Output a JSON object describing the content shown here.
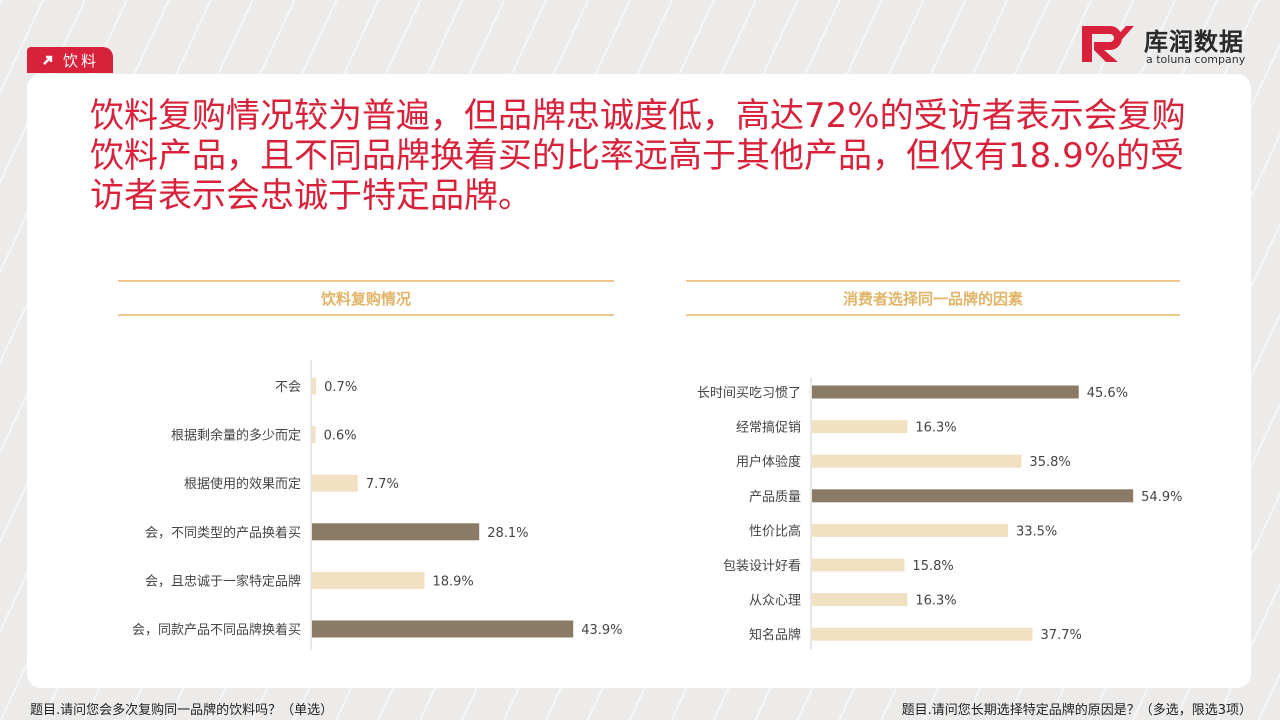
{
  "tag": {
    "label": "饮料"
  },
  "logo": {
    "brand": "库润数据",
    "sub": "a toluna company"
  },
  "headline": "饮料复购情况较为普遍，但品牌忠诚度低，高达72%的受访者表示会复购饮料产品，且不同品牌换着买的比率远高于其他产品，但仅有18.9%的受访者表示会忠诚于特定品牌。",
  "colors": {
    "accent": "#d8213a",
    "dark_bar": "#8b7a66",
    "light_bar": "#f2e0c2",
    "header_line": "#edc98d",
    "header_text": "#e2b467"
  },
  "chart_data": [
    {
      "type": "bar",
      "orientation": "horizontal",
      "title": "饮料复购情况",
      "categories": [
        "不会",
        "根据剩余量的多少而定",
        "根据使用的效果而定",
        "会，不同类型的产品换着买",
        "会，且忠诚于一家特定品牌",
        "会，同款产品不同品牌换着买"
      ],
      "values": [
        0.7,
        0.6,
        7.7,
        28.1,
        18.9,
        43.9
      ],
      "value_labels": [
        "0.7%",
        "0.6%",
        "7.7%",
        "28.1%",
        "18.9%",
        "43.9%"
      ],
      "highlight": [
        false,
        false,
        false,
        true,
        false,
        true
      ],
      "unit": "%"
    },
    {
      "type": "bar",
      "orientation": "horizontal",
      "title": "消费者选择同一品牌的因素",
      "categories": [
        "长时间买吃习惯了",
        "经常搞促销",
        "用户体验度",
        "产品质量",
        "性价比高",
        "包装设计好看",
        "从众心理",
        "知名品牌"
      ],
      "values": [
        45.6,
        16.3,
        35.8,
        54.9,
        33.5,
        15.8,
        16.3,
        37.7
      ],
      "value_labels": [
        "45.6%",
        "16.3%",
        "35.8%",
        "54.9%",
        "33.5%",
        "15.8%",
        "16.3%",
        "37.7%"
      ],
      "highlight": [
        true,
        false,
        false,
        true,
        false,
        false,
        false,
        false
      ],
      "unit": "%"
    }
  ],
  "footnotes": {
    "left": "题目.请问您会多次复购同一品牌的饮料吗？（单选）",
    "right": "题目.请问您长期选择特定品牌的原因是？（多选，限选3项）"
  }
}
